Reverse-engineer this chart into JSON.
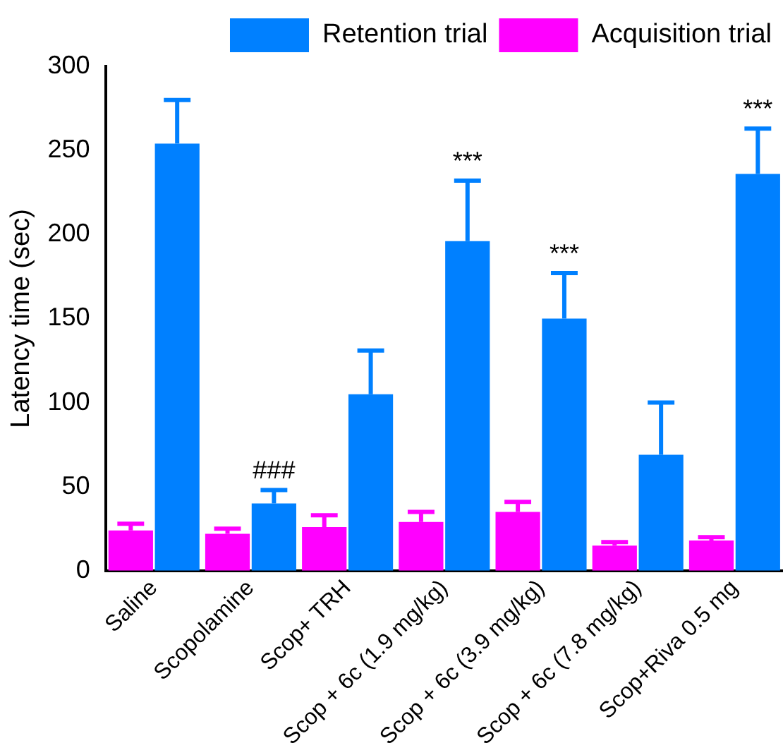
{
  "chart_data": {
    "type": "bar",
    "ylabel": "Latency time (sec)",
    "categories": [
      "Saline",
      "Scopolamine",
      "Scop+ TRH",
      "Scop + 6c (1.9 mg/kg)",
      "Scop + 6c (3.9 mg/kg)",
      "Scop + 6c (7.8 mg/kg)",
      "Scop+Riva 0.5 mg"
    ],
    "series": [
      {
        "name": "Acquisition trial",
        "color": "#ff00ff",
        "values": [
          24,
          22,
          26,
          29,
          35,
          15,
          18
        ],
        "errors": [
          [
            24,
            28
          ],
          [
            22,
            25
          ],
          [
            26,
            33
          ],
          [
            29,
            35
          ],
          [
            35,
            41
          ],
          [
            15,
            17
          ],
          [
            18,
            20
          ]
        ]
      },
      {
        "name": "Retention trial",
        "color": "#0080ff",
        "values": [
          254,
          40,
          105,
          196,
          150,
          69,
          236
        ],
        "value_labels": [
          null,
          "###",
          null,
          "***",
          "***",
          null,
          "***"
        ],
        "errors": [
          [
            254,
            280
          ],
          [
            40,
            48
          ],
          [
            105,
            131
          ],
          [
            196,
            232
          ],
          [
            150,
            177
          ],
          [
            69,
            100
          ],
          [
            236,
            263
          ]
        ]
      }
    ],
    "ylim": [
      0,
      300
    ],
    "yticks": [
      0,
      50,
      100,
      150,
      200,
      250,
      300
    ],
    "grid": false,
    "legend": "top right"
  }
}
